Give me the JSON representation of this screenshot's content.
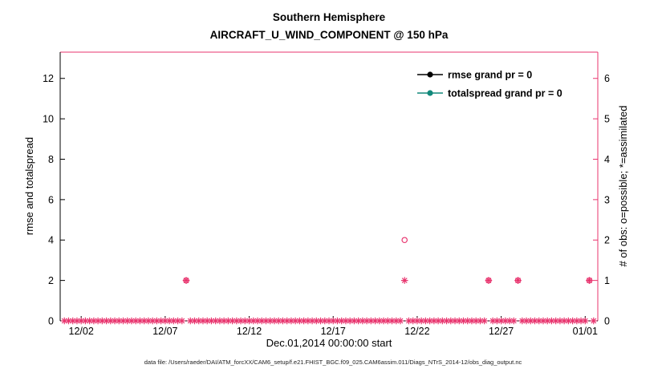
{
  "chart_data": {
    "type": "scatter",
    "title": "Southern Hemisphere",
    "subtitle": "AIRCRAFT_U_WIND_COMPONENT @ 150 hPa",
    "xlabel": "Dec.01,2014 00:00:00 start",
    "ylabel_left": "rmse and totalspread",
    "ylabel_right": "# of obs: o=possible; *=assimilated",
    "caption": "data file: /Users/raeder/DAI/ATM_forcXX/CAM6_setup/f.e21.FHIST_BGC.f09_025.CAM6assim.011/Diags_NTrS_2014-12/obs_diag_output.nc",
    "x_axis": {
      "start_date": "2014-12-01",
      "range_days": [
        -0.25,
        31.75
      ],
      "tick_days": [
        1,
        6,
        11,
        16,
        21,
        26,
        31
      ],
      "tick_labels": [
        "12/02",
        "12/07",
        "12/12",
        "12/17",
        "12/22",
        "12/27",
        "01/01"
      ]
    },
    "y_left": {
      "range": [
        0,
        13.3
      ],
      "ticks": [
        0,
        2,
        4,
        6,
        8,
        10,
        12
      ]
    },
    "y_right": {
      "range": [
        0,
        6.65
      ],
      "ticks": [
        0,
        1,
        2,
        3,
        4,
        5,
        6
      ]
    },
    "grid": false,
    "legend": [
      {
        "label": "rmse grand pr = 0",
        "color": "#000000"
      },
      {
        "label": "totalspread grand pr = 0",
        "color": "#12897b"
      }
    ],
    "line_series": [
      {
        "name": "rmse",
        "color": "#000000",
        "points": []
      },
      {
        "name": "totalspread",
        "color": "#12897b",
        "points": []
      }
    ],
    "obs_markers": {
      "color": "#e8346e",
      "assimilated_baseline": {
        "start_day": 0,
        "end_day": 31.5,
        "step_day": 0.25,
        "count": 0
      },
      "assimilated_nonzero": [
        {
          "day": 7.25,
          "count": 1
        },
        {
          "day": 20.25,
          "count": 1
        },
        {
          "day": 25.25,
          "count": 1
        },
        {
          "day": 27.0,
          "count": 1
        },
        {
          "day": 31.25,
          "count": 1
        }
      ],
      "possible_circles": [
        {
          "day": 20.25,
          "count": 2
        },
        {
          "day": 7.25,
          "count": 1
        },
        {
          "day": 25.25,
          "count": 1
        },
        {
          "day": 27.0,
          "count": 1
        },
        {
          "day": 31.25,
          "count": 1
        }
      ]
    },
    "colors": {
      "obs_axis": "#e8346e",
      "legend_text": "#0000ff"
    }
  }
}
